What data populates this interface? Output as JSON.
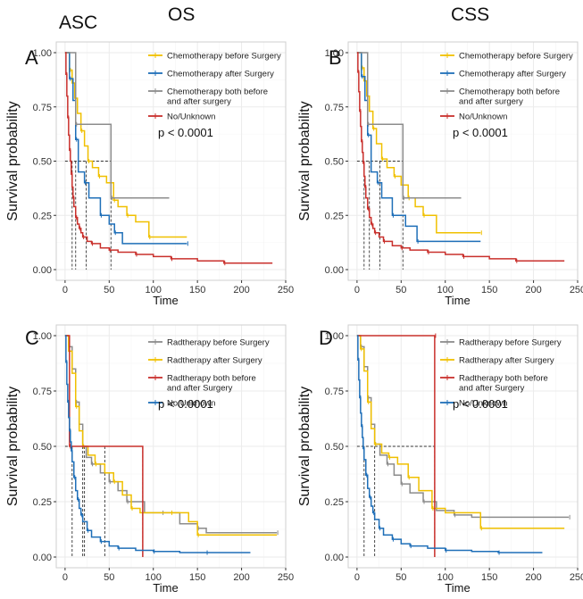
{
  "figure": {
    "cohort_label": "ASC",
    "column_titles": [
      "OS",
      "CSS"
    ]
  },
  "colors": {
    "yellow": "#f0c000",
    "blue": "#1f6fb8",
    "grey": "#8c8c8c",
    "red": "#c9302c",
    "grid": "#ebebeb",
    "median": "#333333"
  },
  "chart_data": [
    {
      "panel": "A",
      "type": "line",
      "subtype": "kaplan-meier",
      "xlabel": "Time",
      "ylabel": "Survival probability",
      "xlim": [
        -10,
        250
      ],
      "ylim": [
        0,
        1
      ],
      "xticks": [
        "0",
        "50",
        "100",
        "150",
        "200",
        "250"
      ],
      "yticks": [
        "0.00",
        "0.25",
        "0.50",
        "0.75",
        "1.00"
      ],
      "pvalue": "p < 0.0001",
      "medians": [
        8,
        12,
        24,
        52
      ],
      "series": [
        {
          "name": "Chemotherapy before Surgery",
          "color": "yellow",
          "x": [
            0,
            5,
            8,
            11,
            14,
            18,
            22,
            26,
            31,
            38,
            47,
            55,
            60,
            70,
            80,
            95,
            138
          ],
          "y": [
            1.0,
            0.92,
            0.86,
            0.79,
            0.72,
            0.64,
            0.57,
            0.5,
            0.47,
            0.43,
            0.4,
            0.32,
            0.29,
            0.25,
            0.22,
            0.15,
            0.15
          ]
        },
        {
          "name": "Chemotherapy after Surgery",
          "color": "blue",
          "x": [
            0,
            5,
            9,
            12,
            15,
            22,
            27,
            40,
            50,
            56,
            65,
            138
          ],
          "y": [
            1.0,
            0.88,
            0.78,
            0.6,
            0.45,
            0.4,
            0.33,
            0.25,
            0.21,
            0.17,
            0.12,
            0.12
          ]
        },
        {
          "name": "Chemotherapy both before\nand after surgery",
          "color": "grey",
          "x": [
            0,
            12,
            24,
            52,
            118
          ],
          "y": [
            1.0,
            0.67,
            0.67,
            0.33,
            0.33
          ]
        },
        {
          "name": "No/Unknown",
          "color": "red",
          "x": [
            0,
            1,
            2,
            3,
            4,
            5,
            6,
            7,
            8,
            9,
            10,
            12,
            14,
            16,
            18,
            20,
            25,
            30,
            40,
            50,
            60,
            80,
            100,
            120,
            150,
            180,
            235
          ],
          "y": [
            1.0,
            0.9,
            0.8,
            0.7,
            0.62,
            0.55,
            0.5,
            0.44,
            0.38,
            0.33,
            0.29,
            0.24,
            0.21,
            0.19,
            0.17,
            0.15,
            0.13,
            0.12,
            0.1,
            0.09,
            0.08,
            0.07,
            0.06,
            0.05,
            0.04,
            0.03,
            0.03
          ]
        }
      ]
    },
    {
      "panel": "B",
      "type": "line",
      "subtype": "kaplan-meier",
      "xlabel": "Time",
      "ylabel": "Survival probability",
      "xlim": [
        -10,
        250
      ],
      "ylim": [
        0,
        1
      ],
      "xticks": [
        "0",
        "50",
        "100",
        "150",
        "200",
        "250"
      ],
      "yticks": [
        "0.00",
        "0.25",
        "0.50",
        "0.75",
        "1.00"
      ],
      "pvalue": "p < 0.0001",
      "medians": [
        8,
        14,
        26,
        52
      ],
      "series": [
        {
          "name": "Chemotherapy before Surgery",
          "color": "yellow",
          "x": [
            0,
            5,
            8,
            11,
            14,
            18,
            22,
            28,
            34,
            42,
            50,
            58,
            66,
            75,
            90,
            140
          ],
          "y": [
            1.0,
            0.93,
            0.87,
            0.8,
            0.73,
            0.65,
            0.58,
            0.51,
            0.47,
            0.43,
            0.39,
            0.33,
            0.29,
            0.25,
            0.17,
            0.17
          ]
        },
        {
          "name": "Chemotherapy after Surgery",
          "color": "blue",
          "x": [
            0,
            5,
            9,
            12,
            16,
            23,
            28,
            40,
            55,
            68,
            140
          ],
          "y": [
            1.0,
            0.89,
            0.78,
            0.62,
            0.45,
            0.4,
            0.33,
            0.25,
            0.2,
            0.13,
            0.13
          ]
        },
        {
          "name": "Chemotherapy both before\nand after surgery",
          "color": "grey",
          "x": [
            0,
            12,
            26,
            52,
            118
          ],
          "y": [
            1.0,
            0.67,
            0.67,
            0.33,
            0.33
          ]
        },
        {
          "name": "No/Unknown",
          "color": "red",
          "x": [
            0,
            1,
            2,
            3,
            4,
            5,
            6,
            7,
            8,
            9,
            10,
            12,
            14,
            16,
            18,
            20,
            25,
            30,
            40,
            50,
            60,
            80,
            100,
            120,
            150,
            180,
            235
          ],
          "y": [
            1.0,
            0.91,
            0.82,
            0.73,
            0.66,
            0.59,
            0.54,
            0.49,
            0.43,
            0.38,
            0.33,
            0.28,
            0.24,
            0.21,
            0.19,
            0.17,
            0.15,
            0.13,
            0.11,
            0.1,
            0.09,
            0.08,
            0.07,
            0.06,
            0.05,
            0.04,
            0.04
          ]
        }
      ]
    },
    {
      "panel": "C",
      "type": "line",
      "subtype": "kaplan-meier",
      "xlabel": "Time",
      "ylabel": "Survival probability",
      "xlim": [
        -10,
        250
      ],
      "ylim": [
        0,
        1
      ],
      "xticks": [
        "0",
        "50",
        "100",
        "150",
        "200",
        "250"
      ],
      "yticks": [
        "0.00",
        "0.25",
        "0.50",
        "0.75",
        "1.00"
      ],
      "pvalue": "p < 0.0001",
      "medians": [
        8,
        20,
        22,
        45,
        88
      ],
      "series": [
        {
          "name": "Radtherapy before Surgery",
          "color": "grey",
          "x": [
            0,
            4,
            8,
            12,
            16,
            20,
            24,
            30,
            40,
            50,
            60,
            70,
            90,
            110,
            130,
            150,
            160,
            240
          ],
          "y": [
            1.0,
            0.95,
            0.85,
            0.7,
            0.6,
            0.5,
            0.45,
            0.42,
            0.38,
            0.34,
            0.3,
            0.25,
            0.2,
            0.2,
            0.15,
            0.13,
            0.11,
            0.11
          ]
        },
        {
          "name": "Radtherapy after Surgery",
          "color": "yellow",
          "x": [
            0,
            4,
            8,
            12,
            16,
            20,
            26,
            34,
            45,
            55,
            65,
            75,
            85,
            120,
            140,
            150,
            240
          ],
          "y": [
            1.0,
            0.93,
            0.83,
            0.68,
            0.57,
            0.5,
            0.46,
            0.42,
            0.38,
            0.34,
            0.28,
            0.22,
            0.2,
            0.2,
            0.16,
            0.1,
            0.1
          ]
        },
        {
          "name": "Radtherapy both before\nand after Surgery",
          "color": "red",
          "x": [
            0,
            5,
            88,
            88
          ],
          "y": [
            1.0,
            0.5,
            0.5,
            0.0
          ]
        },
        {
          "name": "No/Unknown",
          "color": "blue",
          "x": [
            0,
            1,
            2,
            3,
            4,
            5,
            6,
            7,
            8,
            10,
            12,
            14,
            16,
            18,
            20,
            25,
            30,
            40,
            50,
            60,
            80,
            100,
            130,
            160,
            210
          ],
          "y": [
            1.0,
            0.88,
            0.78,
            0.7,
            0.63,
            0.57,
            0.52,
            0.48,
            0.43,
            0.36,
            0.3,
            0.26,
            0.22,
            0.19,
            0.16,
            0.12,
            0.09,
            0.07,
            0.05,
            0.04,
            0.03,
            0.025,
            0.02,
            0.02,
            0.02
          ]
        }
      ]
    },
    {
      "panel": "D",
      "type": "line",
      "subtype": "kaplan-meier",
      "xlabel": "Time",
      "ylabel": "Survival probability",
      "xlim": [
        -10,
        250
      ],
      "ylim": [
        0,
        1
      ],
      "xticks": [
        "0",
        "50",
        "100",
        "150",
        "200",
        "250"
      ],
      "yticks": [
        "0.00",
        "0.25",
        "0.50",
        "0.75",
        "1.00"
      ],
      "pvalue": "p < 0.0001",
      "medians": [
        8,
        20,
        88
      ],
      "series": [
        {
          "name": "Radtherapy before Surgery",
          "color": "grey",
          "x": [
            0,
            4,
            8,
            12,
            16,
            20,
            26,
            34,
            42,
            50,
            60,
            75,
            90,
            110,
            130,
            240
          ],
          "y": [
            1.0,
            0.95,
            0.86,
            0.72,
            0.6,
            0.51,
            0.46,
            0.42,
            0.37,
            0.33,
            0.29,
            0.25,
            0.21,
            0.19,
            0.18,
            0.18
          ]
        },
        {
          "name": "Radtherapy after Surgery",
          "color": "yellow",
          "x": [
            0,
            4,
            8,
            12,
            16,
            20,
            28,
            36,
            46,
            58,
            70,
            85,
            100,
            140,
            235
          ],
          "y": [
            1.0,
            0.94,
            0.84,
            0.7,
            0.58,
            0.51,
            0.47,
            0.45,
            0.42,
            0.36,
            0.3,
            0.22,
            0.2,
            0.13,
            0.13
          ]
        },
        {
          "name": "Radtherapy both before\nand after Surgery",
          "color": "red",
          "x": [
            0,
            88,
            88
          ],
          "y": [
            1.0,
            1.0,
            0.0
          ]
        },
        {
          "name": "No/Unknown",
          "color": "blue",
          "x": [
            0,
            1,
            2,
            3,
            4,
            5,
            6,
            7,
            8,
            10,
            12,
            14,
            16,
            18,
            20,
            25,
            30,
            40,
            50,
            60,
            80,
            100,
            130,
            160,
            210
          ],
          "y": [
            1.0,
            0.89,
            0.8,
            0.72,
            0.65,
            0.59,
            0.54,
            0.49,
            0.44,
            0.37,
            0.31,
            0.27,
            0.23,
            0.2,
            0.17,
            0.13,
            0.1,
            0.08,
            0.06,
            0.05,
            0.04,
            0.03,
            0.025,
            0.02,
            0.02
          ]
        }
      ]
    }
  ]
}
